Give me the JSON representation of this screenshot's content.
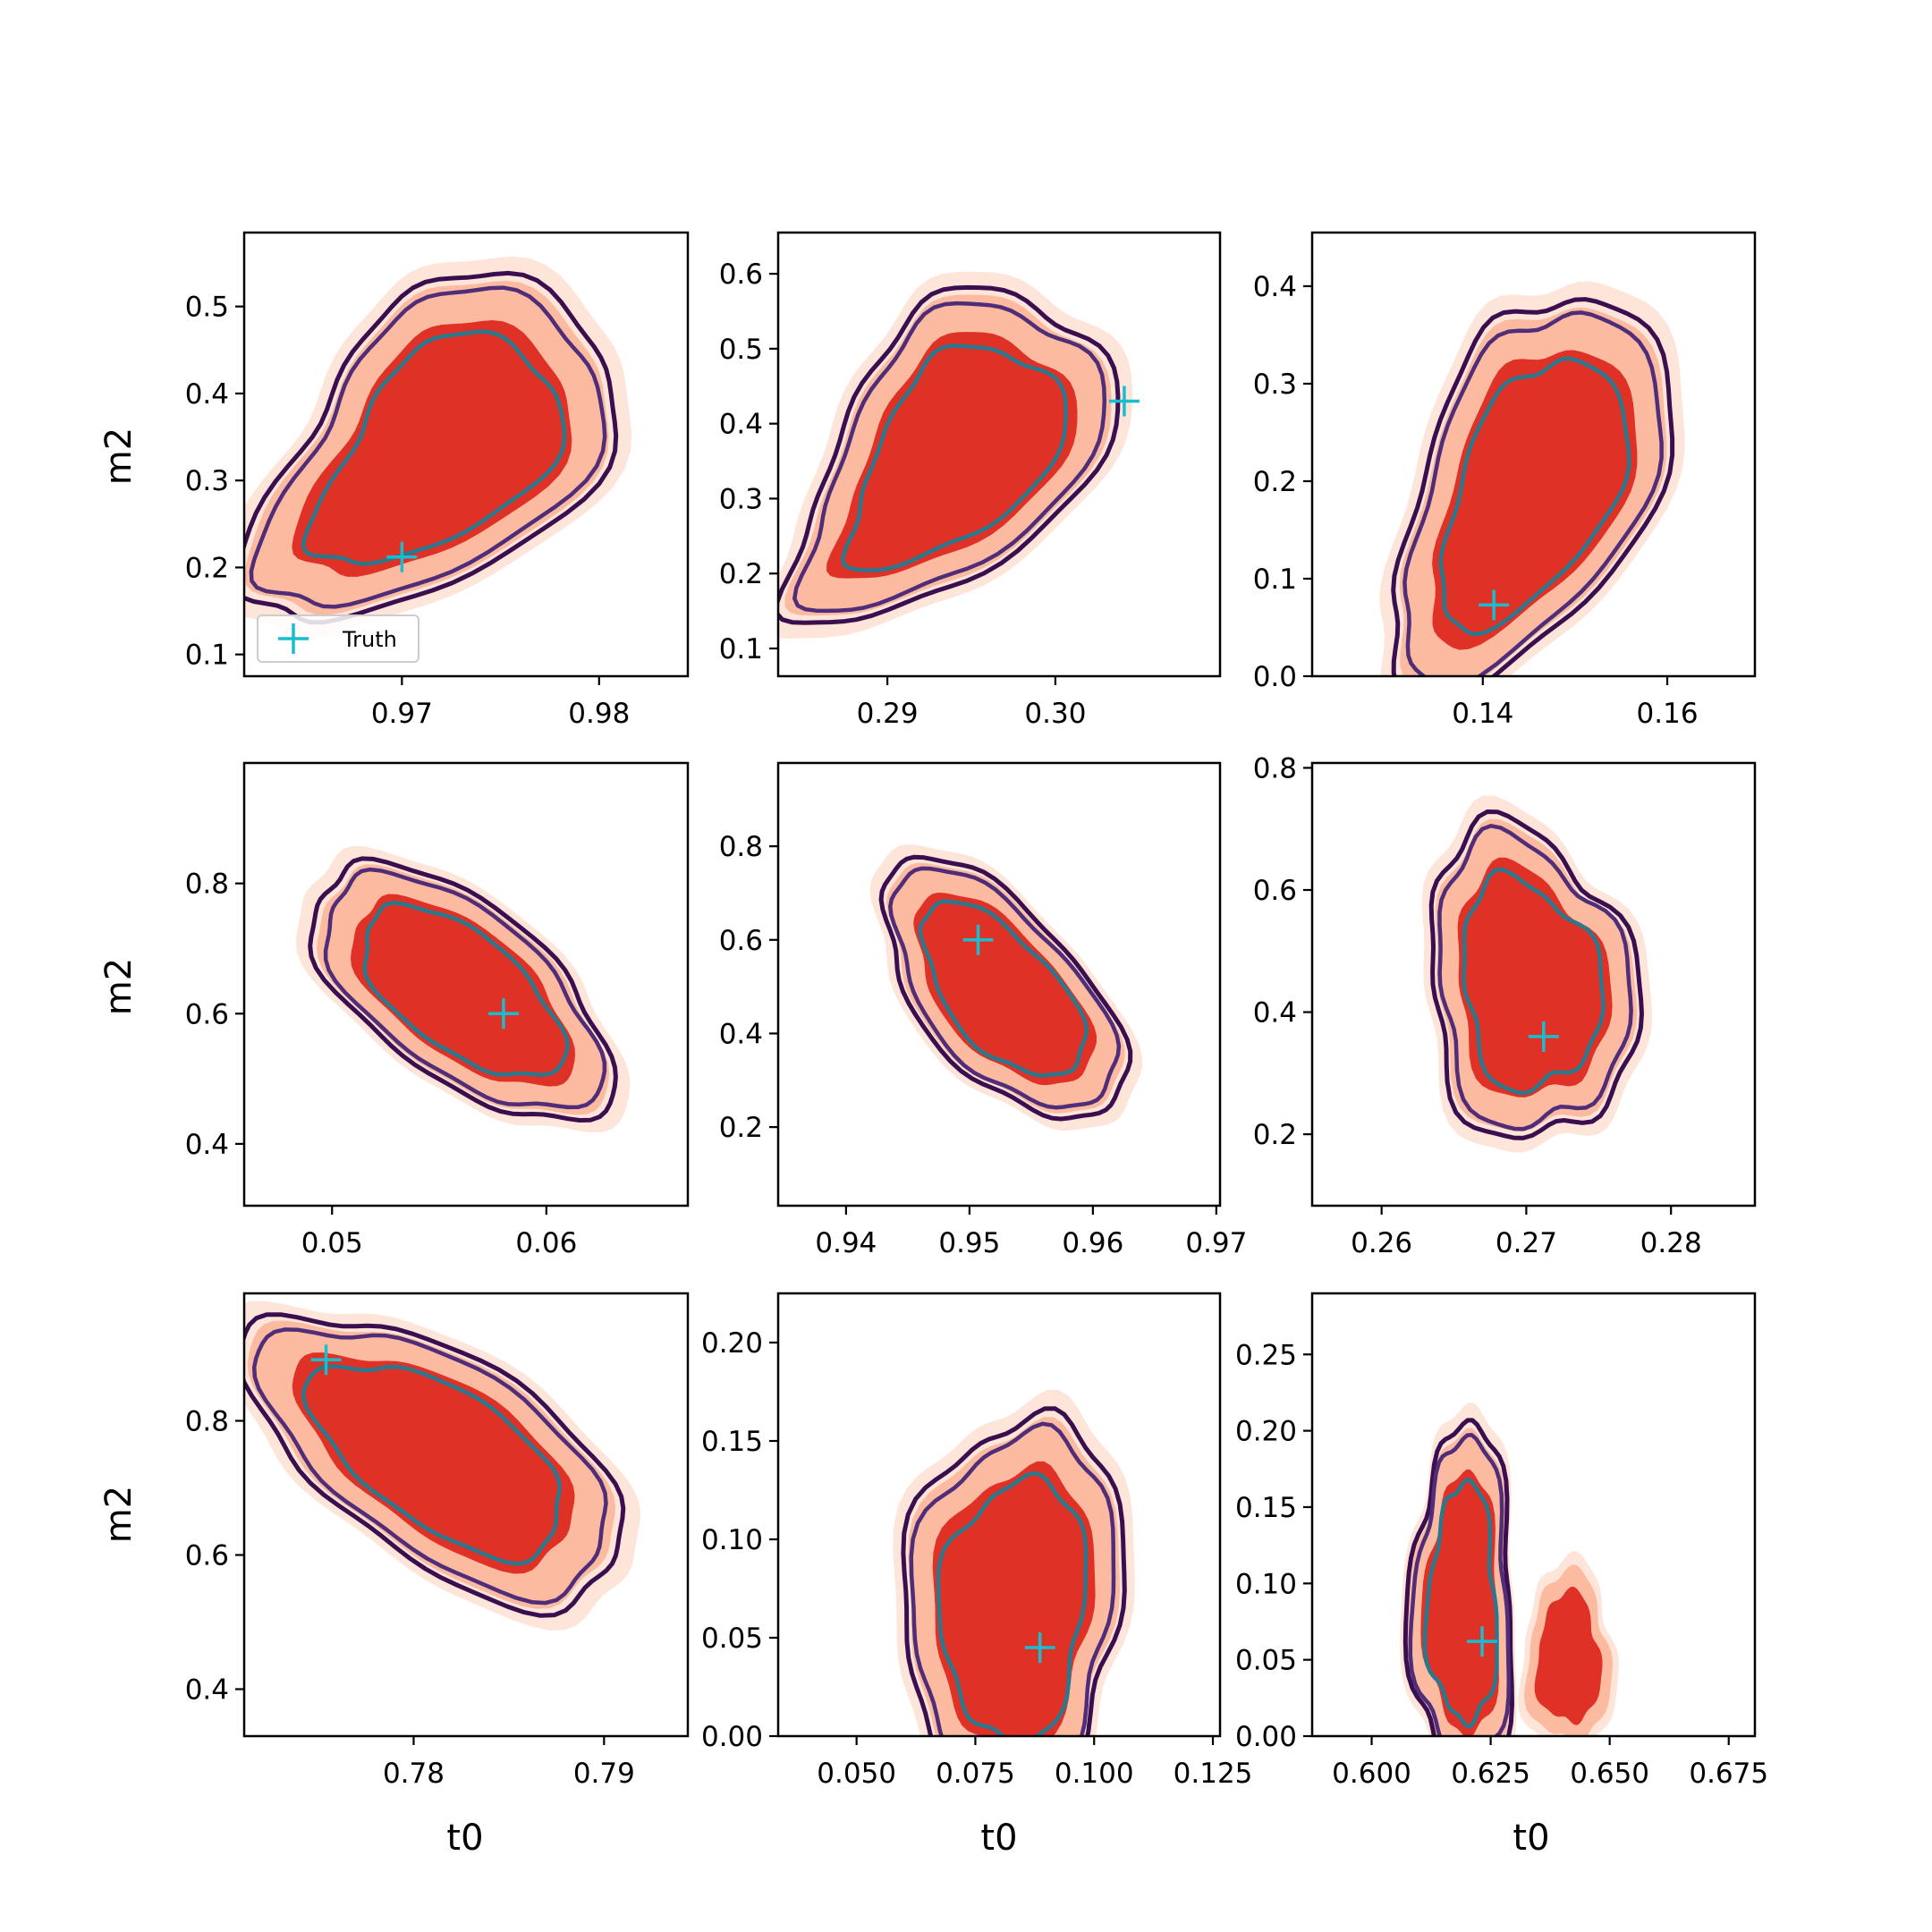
{
  "figure": {
    "xlabel": "t0",
    "ylabel": "m2",
    "legend": {
      "label": "Truth",
      "placement": "lower-left",
      "panel": 0
    }
  },
  "colors": {
    "fill_outer": "#fee5d9",
    "fill_mid": "#fcbba1",
    "fill_inner": "#e03127",
    "line_outer": "#3b0f4f",
    "line_mid": "#4f2d78",
    "line_inner": "#2a788e",
    "truth_marker": "#17becf"
  },
  "chart_data": [
    {
      "type": "contour",
      "x_ticks": [
        "0.97",
        "0.98"
      ],
      "x_tick_values": [
        0.97,
        0.98
      ],
      "y_ticks": [
        "0.1",
        "0.2",
        "0.3",
        "0.4",
        "0.5"
      ],
      "y_tick_values": [
        0.1,
        0.2,
        0.3,
        0.4,
        0.5
      ],
      "xlim": [
        0.962,
        0.9845
      ],
      "ylim": [
        0.075,
        0.585
      ],
      "truth": [
        0.97,
        0.212
      ],
      "contour_center": [
        0.9724,
        0.334
      ],
      "contour_radius": [
        0.0068,
        0.17
      ],
      "contour_shape": "banana-up"
    },
    {
      "type": "contour",
      "x_ticks": [
        "0.29",
        "0.30"
      ],
      "x_tick_values": [
        0.29,
        0.3
      ],
      "y_ticks": [
        "0.1",
        "0.2",
        "0.3",
        "0.4",
        "0.5",
        "0.6"
      ],
      "y_tick_values": [
        0.1,
        0.2,
        0.3,
        0.4,
        0.5,
        0.6
      ],
      "xlim": [
        0.2835,
        0.3098
      ],
      "ylim": [
        0.063,
        0.655
      ],
      "truth": [
        0.3041,
        0.43
      ],
      "contour_center": [
        0.2946,
        0.358
      ],
      "contour_radius": [
        0.0069,
        0.19
      ],
      "contour_shape": "banana-up"
    },
    {
      "type": "contour",
      "x_ticks": [
        "0.14",
        "0.16"
      ],
      "x_tick_values": [
        0.14,
        0.16
      ],
      "y_ticks": [
        "0.0",
        "0.1",
        "0.2",
        "0.3",
        "0.4"
      ],
      "y_tick_values": [
        0.0,
        0.1,
        0.2,
        0.3,
        0.4
      ],
      "xlim": [
        0.1215,
        0.1695
      ],
      "ylim": [
        0.0,
        0.455
      ],
      "truth": [
        0.1412,
        0.073
      ],
      "contour_center": [
        0.1462,
        0.19
      ],
      "contour_radius": [
        0.0112,
        0.176
      ],
      "contour_shape": "banana-up"
    },
    {
      "type": "contour",
      "x_ticks": [
        "0.05",
        "0.06"
      ],
      "x_tick_values": [
        0.05,
        0.06
      ],
      "y_ticks": [
        "0.4",
        "0.6",
        "0.8"
      ],
      "y_tick_values": [
        0.4,
        0.6,
        0.8
      ],
      "xlim": [
        0.0459,
        0.0666
      ],
      "ylim": [
        0.305,
        0.985
      ],
      "truth": [
        0.058,
        0.6
      ],
      "contour_center": [
        0.0561,
        0.633
      ],
      "contour_radius": [
        0.0048,
        0.168
      ],
      "contour_shape": "tilt-down"
    },
    {
      "type": "contour",
      "x_ticks": [
        "0.94",
        "0.95",
        "0.96",
        "0.97"
      ],
      "x_tick_values": [
        0.94,
        0.95,
        0.96,
        0.97
      ],
      "y_ticks": [
        "0.2",
        "0.4",
        "0.6",
        "0.8"
      ],
      "y_tick_values": [
        0.2,
        0.4,
        0.6,
        0.8
      ],
      "xlim": [
        0.9345,
        0.9703
      ],
      "ylim": [
        0.032,
        0.978
      ],
      "truth": [
        0.9507,
        0.6
      ],
      "contour_center": [
        0.9527,
        0.49
      ],
      "contour_radius": [
        0.0067,
        0.238
      ],
      "contour_shape": "tilt-down"
    },
    {
      "type": "contour",
      "x_ticks": [
        "0.26",
        "0.27",
        "0.28"
      ],
      "x_tick_values": [
        0.26,
        0.27,
        0.28
      ],
      "y_ticks": [
        "0.2",
        "0.4",
        "0.6",
        "0.8"
      ],
      "y_tick_values": [
        0.2,
        0.4,
        0.6,
        0.8
      ],
      "xlim": [
        0.2552,
        0.2858
      ],
      "ylim": [
        0.083,
        0.808
      ],
      "truth": [
        0.2712,
        0.36
      ],
      "contour_center": [
        0.2703,
        0.445
      ],
      "contour_radius": [
        0.0061,
        0.22
      ],
      "contour_shape": "blob"
    },
    {
      "type": "contour",
      "x_ticks": [
        "0.78",
        "0.79"
      ],
      "x_tick_values": [
        0.78,
        0.79
      ],
      "y_ticks": [
        "0.4",
        "0.6",
        "0.8"
      ],
      "y_tick_values": [
        0.4,
        0.6,
        0.8
      ],
      "xlim": [
        0.7711,
        0.7944
      ],
      "ylim": [
        0.33,
        0.99
      ],
      "truth": [
        0.7754,
        0.891
      ],
      "contour_center": [
        0.7814,
        0.745
      ],
      "contour_radius": [
        0.0068,
        0.185
      ],
      "contour_shape": "tilt-down"
    },
    {
      "type": "contour",
      "x_ticks": [
        "0.050",
        "0.075",
        "0.100",
        "0.125"
      ],
      "x_tick_values": [
        0.05,
        0.075,
        0.1,
        0.125
      ],
      "y_ticks": [
        "0.00",
        "0.05",
        "0.10",
        "0.15",
        "0.20"
      ],
      "y_tick_values": [
        0.0,
        0.05,
        0.1,
        0.15,
        0.2
      ],
      "xlim": [
        0.0335,
        0.1265
      ],
      "ylim": [
        0.0,
        0.225
      ],
      "truth": [
        0.0886,
        0.045
      ],
      "contour_center": [
        0.0832,
        0.065
      ],
      "contour_radius": [
        0.0195,
        0.085
      ],
      "contour_shape": "column"
    },
    {
      "type": "contour",
      "x_ticks": [
        "0.600",
        "0.625",
        "0.650",
        "0.675"
      ],
      "x_tick_values": [
        0.6,
        0.625,
        0.65,
        0.675
      ],
      "y_ticks": [
        "0.00",
        "0.05",
        "0.10",
        "0.15",
        "0.20",
        "0.25"
      ],
      "y_tick_values": [
        0.0,
        0.05,
        0.1,
        0.15,
        0.2,
        0.25
      ],
      "xlim": [
        0.5875,
        0.6805
      ],
      "ylim": [
        0.0,
        0.29
      ],
      "truth": [
        0.6232,
        0.062
      ],
      "contour_center": [
        0.6275,
        0.085
      ],
      "contour_radius": [
        0.0185,
        0.1
      ],
      "contour_shape": "bimodal"
    }
  ]
}
